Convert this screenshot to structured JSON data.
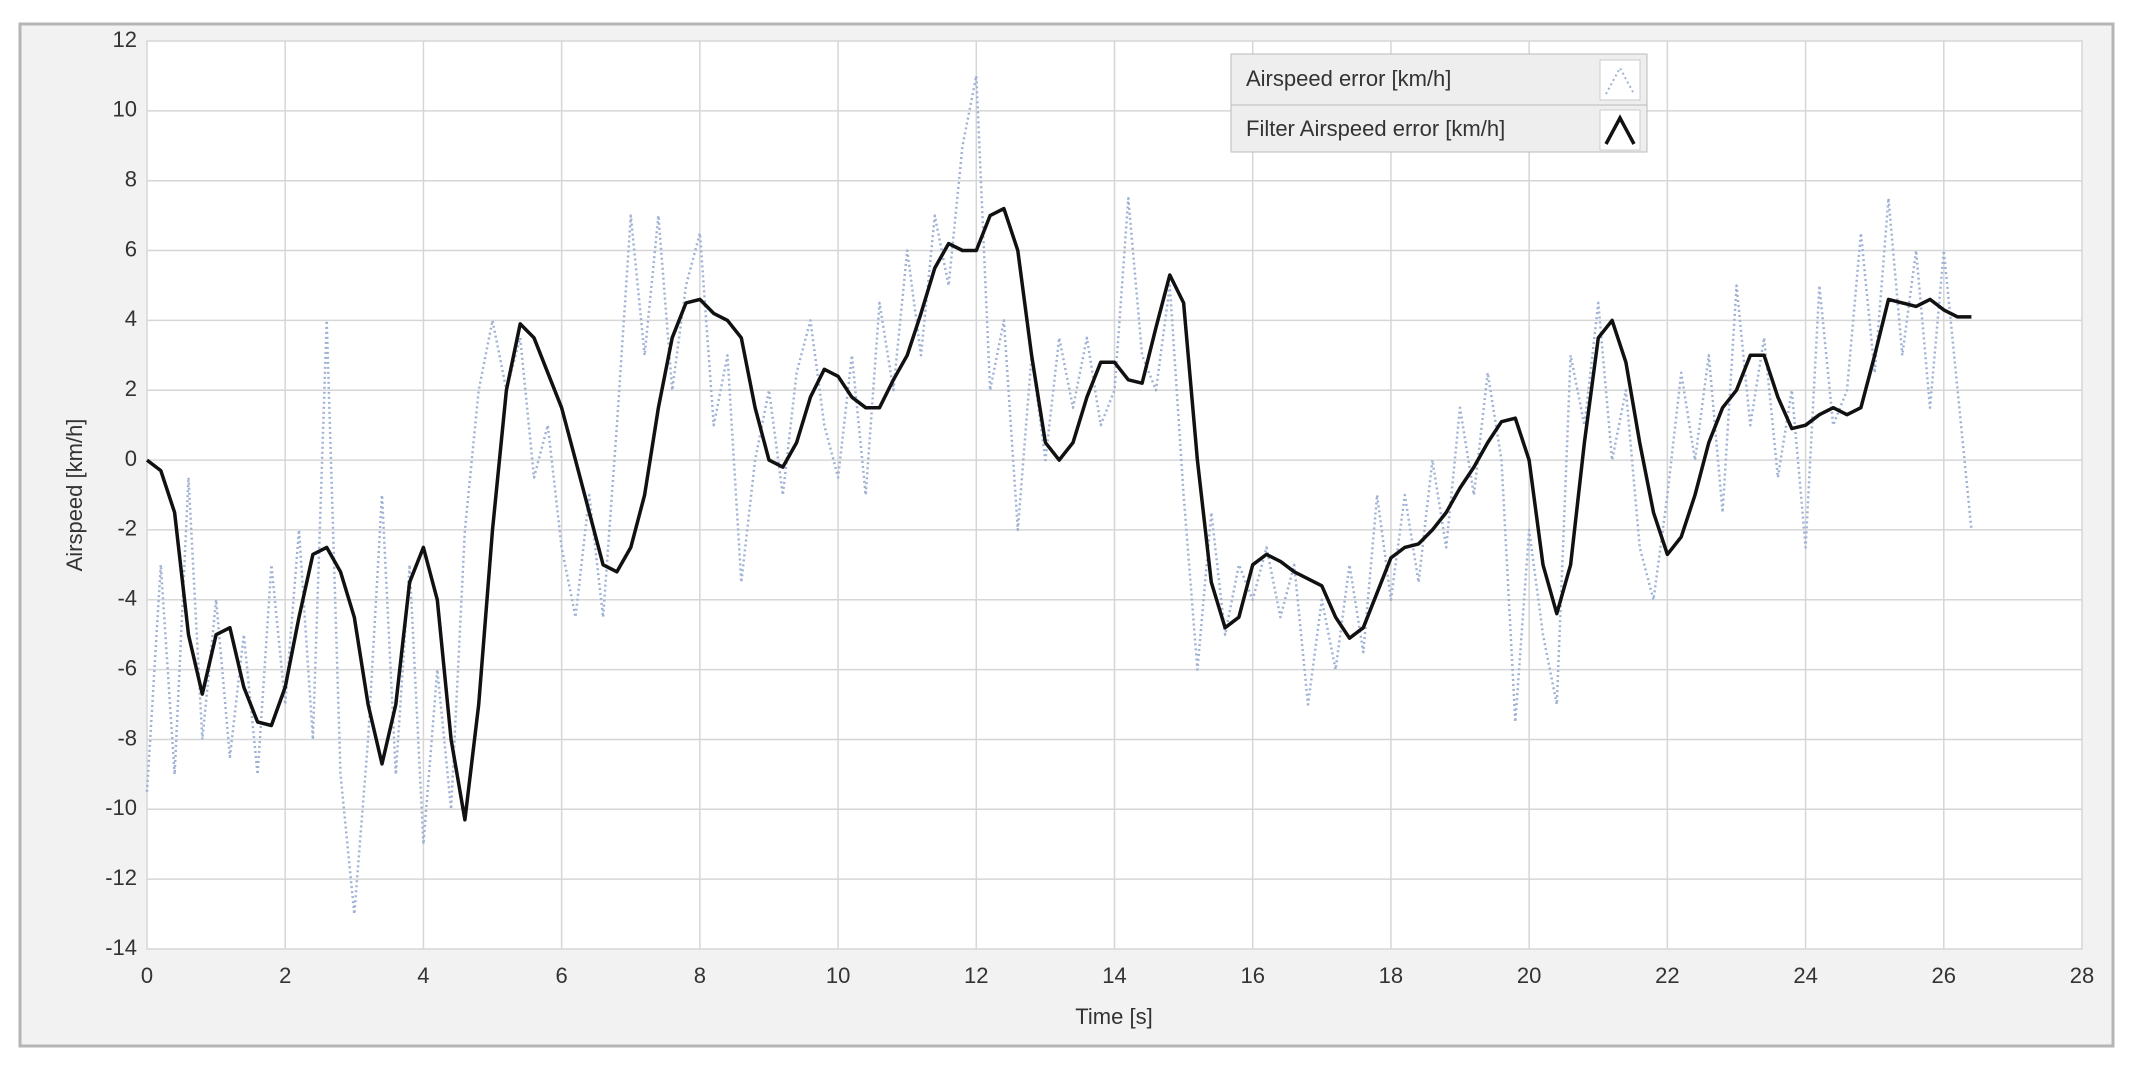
{
  "chart_data": {
    "type": "line",
    "xlabel": "Time [s]",
    "ylabel": "Airspeed [km/h]",
    "xlim": [
      0,
      28
    ],
    "ylim": [
      -14,
      12
    ],
    "xticks": [
      0,
      2,
      4,
      6,
      8,
      10,
      12,
      14,
      16,
      18,
      20,
      22,
      24,
      26,
      28
    ],
    "yticks": [
      -14,
      -12,
      -10,
      -8,
      -6,
      -4,
      -2,
      0,
      2,
      4,
      6,
      8,
      10,
      12
    ],
    "grid": true,
    "x": [
      0,
      0.2,
      0.4,
      0.6,
      0.8,
      1,
      1.2,
      1.4,
      1.6,
      1.8,
      2,
      2.2,
      2.4,
      2.6,
      2.8,
      3,
      3.2,
      3.4,
      3.6,
      3.8,
      4,
      4.2,
      4.4,
      4.6,
      4.8,
      5,
      5.2,
      5.4,
      5.6,
      5.8,
      6,
      6.2,
      6.4,
      6.6,
      6.8,
      7,
      7.2,
      7.4,
      7.6,
      7.8,
      8,
      8.2,
      8.4,
      8.6,
      8.8,
      9,
      9.2,
      9.4,
      9.6,
      9.8,
      10,
      10.2,
      10.4,
      10.6,
      10.8,
      11,
      11.2,
      11.4,
      11.6,
      11.8,
      12,
      12.2,
      12.4,
      12.6,
      12.8,
      13,
      13.2,
      13.4,
      13.6,
      13.8,
      14,
      14.2,
      14.4,
      14.6,
      14.8,
      15,
      15.2,
      15.4,
      15.6,
      15.8,
      16,
      16.2,
      16.4,
      16.6,
      16.8,
      17,
      17.2,
      17.4,
      17.6,
      17.8,
      18,
      18.2,
      18.4,
      18.6,
      18.8,
      19,
      19.2,
      19.4,
      19.6,
      19.8,
      20,
      20.2,
      20.4,
      20.6,
      20.8,
      21,
      21.2,
      21.4,
      21.6,
      21.8,
      22,
      22.2,
      22.4,
      22.6,
      22.8,
      23,
      23.2,
      23.4,
      23.6,
      23.8,
      24,
      24.2,
      24.4,
      24.6,
      24.8,
      25,
      25.2,
      25.4,
      25.6,
      25.8,
      26,
      26.2,
      26.4
    ],
    "series": [
      {
        "name": "Airspeed error [km/h]",
        "color": "#9fb2d4",
        "style": "dotted",
        "values": [
          -9.5,
          -3,
          -9,
          -0.5,
          -8,
          -4,
          -8.5,
          -5,
          -9,
          -3,
          -7,
          -2,
          -8,
          4,
          -9,
          -13,
          -8,
          -1,
          -9,
          -3,
          -11,
          -6,
          -10,
          -2,
          2,
          4,
          2,
          3.5,
          -0.5,
          1,
          -2.5,
          -4.5,
          -1,
          -4.5,
          1,
          7,
          3,
          7,
          2,
          5,
          6.5,
          1,
          3,
          -3.5,
          0,
          2,
          -1,
          2.5,
          4,
          1,
          -0.5,
          3,
          -1,
          4.5,
          2,
          6,
          3,
          7,
          5,
          9,
          11,
          2,
          4,
          -2,
          3,
          0,
          3.5,
          1.5,
          3.5,
          1,
          2,
          7.5,
          3,
          2,
          5,
          -1,
          -6,
          -1.5,
          -5,
          -3,
          -4,
          -2.5,
          -4.5,
          -3,
          -7,
          -4,
          -6,
          -3,
          -5.5,
          -1,
          -4,
          -1,
          -3.5,
          0,
          -2.5,
          1.5,
          -1,
          2.5,
          0,
          -7.5,
          -2,
          -5,
          -7,
          3,
          1,
          4.5,
          0,
          2,
          -2.5,
          -4,
          -1,
          2.5,
          0,
          3,
          -1.5,
          5,
          1,
          3.5,
          -0.5,
          2,
          -2.5,
          5,
          1,
          2,
          6.5,
          2.5,
          7.5,
          3,
          6,
          1.5,
          6,
          2,
          -2
        ]
      },
      {
        "name": "Filter Airspeed error [km/h]",
        "color": "#111111",
        "style": "solid",
        "values": [
          0,
          -0.3,
          -1.5,
          -5,
          -6.7,
          -5,
          -4.8,
          -6.5,
          -7.5,
          -7.6,
          -6.5,
          -4.5,
          -2.7,
          -2.5,
          -3.2,
          -4.5,
          -7,
          -8.7,
          -7,
          -3.5,
          -2.5,
          -4,
          -8,
          -10.3,
          -7,
          -2,
          2,
          3.9,
          3.5,
          2.5,
          1.5,
          0,
          -1.5,
          -3,
          -3.2,
          -2.5,
          -1,
          1.5,
          3.5,
          4.5,
          4.6,
          4.2,
          4,
          3.5,
          1.5,
          0,
          -0.2,
          0.5,
          1.8,
          2.6,
          2.4,
          1.8,
          1.5,
          1.5,
          2.3,
          3,
          4.2,
          5.5,
          6.2,
          6,
          6,
          7,
          7.2,
          6,
          3,
          0.5,
          0,
          0.5,
          1.8,
          2.8,
          2.8,
          2.3,
          2.2,
          3.8,
          5.3,
          4.5,
          0,
          -3.5,
          -4.8,
          -4.5,
          -3,
          -2.7,
          -2.9,
          -3.2,
          -3.4,
          -3.6,
          -4.5,
          -5.1,
          -4.8,
          -3.8,
          -2.8,
          -2.5,
          -2.4,
          -2,
          -1.5,
          -0.8,
          -0.2,
          0.5,
          1.1,
          1.2,
          0,
          -3,
          -4.4,
          -3,
          0.5,
          3.5,
          4,
          2.8,
          0.5,
          -1.5,
          -2.7,
          -2.2,
          -1,
          0.5,
          1.5,
          2,
          3,
          3,
          1.8,
          0.9,
          1,
          1.3,
          1.5,
          1.3,
          1.5,
          3,
          4.6,
          4.5,
          4.4,
          4.6,
          4.3,
          4.1,
          4.1
        ]
      }
    ]
  }
}
